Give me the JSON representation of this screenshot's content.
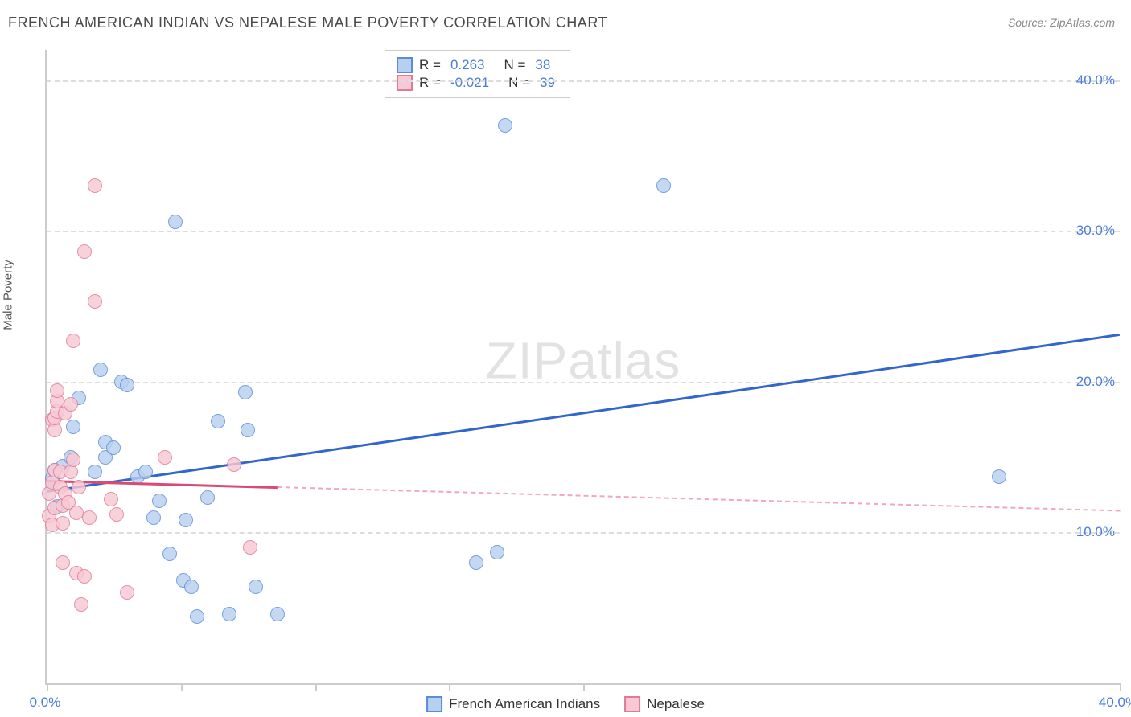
{
  "title": "FRENCH AMERICAN INDIAN VS NEPALESE MALE POVERTY CORRELATION CHART",
  "source": "Source: ZipAtlas.com",
  "y_label": "Male Poverty",
  "watermark_a": "ZIP",
  "watermark_b": "atlas",
  "chart": {
    "type": "scatter",
    "xlim": [
      0,
      40
    ],
    "ylim": [
      0,
      42
    ],
    "x_ticks": [
      0,
      5,
      10,
      15,
      20,
      40
    ],
    "x_tick_labels": {
      "0": "0.0%",
      "40": "40.0%"
    },
    "y_grid": [
      10,
      20,
      30,
      40
    ],
    "y_tick_labels": {
      "10": "10.0%",
      "20": "20.0%",
      "30": "30.0%",
      "40": "40.0%"
    },
    "background_color": "#ffffff",
    "grid_color": "#dddddd",
    "axis_color": "#cccccc",
    "tick_label_color": "#4a7cd8",
    "series": [
      {
        "name": "French American Indians",
        "marker_fill": "#b8d0f0",
        "marker_stroke": "#5a8cd8",
        "marker_size": 18,
        "line_color": "#3366cc",
        "r": "0.263",
        "n": "38",
        "trend": {
          "x1": 0,
          "y1": 12.8,
          "x2": 40,
          "y2": 23.2,
          "solid_until_x": 40
        },
        "points": [
          [
            0.2,
            13.6
          ],
          [
            0.3,
            14.1
          ],
          [
            0.4,
            11.7
          ],
          [
            0.6,
            14.4
          ],
          [
            0.9,
            15.0
          ],
          [
            1.0,
            17.0
          ],
          [
            1.2,
            18.9
          ],
          [
            1.8,
            14.0
          ],
          [
            2.0,
            20.8
          ],
          [
            2.2,
            16.0
          ],
          [
            2.2,
            15.0
          ],
          [
            2.5,
            15.6
          ],
          [
            2.8,
            20.0
          ],
          [
            3.0,
            19.8
          ],
          [
            3.4,
            13.7
          ],
          [
            3.7,
            14.0
          ],
          [
            4.0,
            11.0
          ],
          [
            4.2,
            12.1
          ],
          [
            4.6,
            8.6
          ],
          [
            4.8,
            30.6
          ],
          [
            5.1,
            6.8
          ],
          [
            5.2,
            10.8
          ],
          [
            5.4,
            6.4
          ],
          [
            5.6,
            4.4
          ],
          [
            6.0,
            12.3
          ],
          [
            6.4,
            17.4
          ],
          [
            6.8,
            4.6
          ],
          [
            7.4,
            19.3
          ],
          [
            7.5,
            16.8
          ],
          [
            7.8,
            6.4
          ],
          [
            8.6,
            4.6
          ],
          [
            16.0,
            8.0
          ],
          [
            16.8,
            8.7
          ],
          [
            17.1,
            37.0
          ],
          [
            23.0,
            33.0
          ],
          [
            35.5,
            13.7
          ]
        ]
      },
      {
        "name": "Nepalese",
        "marker_fill": "#f7c9d4",
        "marker_stroke": "#e07a95",
        "marker_size": 18,
        "line_color": "#d94b74",
        "dash_color": "#f2a8bc",
        "r": "-0.021",
        "n": "39",
        "trend": {
          "x1": 0,
          "y1": 13.5,
          "x2": 40,
          "y2": 11.5,
          "solid_until_x": 8.6
        },
        "points": [
          [
            0.1,
            11.1
          ],
          [
            0.1,
            12.6
          ],
          [
            0.2,
            10.5
          ],
          [
            0.2,
            13.3
          ],
          [
            0.2,
            17.5
          ],
          [
            0.3,
            11.6
          ],
          [
            0.3,
            14.1
          ],
          [
            0.3,
            16.8
          ],
          [
            0.3,
            17.6
          ],
          [
            0.4,
            18.0
          ],
          [
            0.4,
            18.7
          ],
          [
            0.4,
            19.4
          ],
          [
            0.5,
            13.0
          ],
          [
            0.5,
            14.0
          ],
          [
            0.6,
            8.0
          ],
          [
            0.6,
            10.6
          ],
          [
            0.6,
            11.8
          ],
          [
            0.7,
            12.6
          ],
          [
            0.7,
            17.9
          ],
          [
            0.8,
            12.0
          ],
          [
            0.9,
            14.0
          ],
          [
            0.9,
            18.5
          ],
          [
            1.0,
            14.8
          ],
          [
            1.0,
            22.7
          ],
          [
            1.1,
            7.3
          ],
          [
            1.1,
            11.3
          ],
          [
            1.2,
            13.0
          ],
          [
            1.3,
            5.2
          ],
          [
            1.4,
            7.1
          ],
          [
            1.4,
            28.6
          ],
          [
            1.6,
            11.0
          ],
          [
            1.8,
            25.3
          ],
          [
            1.8,
            33.0
          ],
          [
            2.4,
            12.2
          ],
          [
            2.6,
            11.2
          ],
          [
            3.0,
            6.0
          ],
          [
            4.4,
            15.0
          ],
          [
            7.0,
            14.5
          ],
          [
            7.6,
            9.0
          ]
        ]
      }
    ]
  },
  "legend_top": {
    "r_label": "R =",
    "n_label": "N ="
  },
  "legend_bottom": {
    "series1": "French American Indians",
    "series2": "Nepalese"
  }
}
